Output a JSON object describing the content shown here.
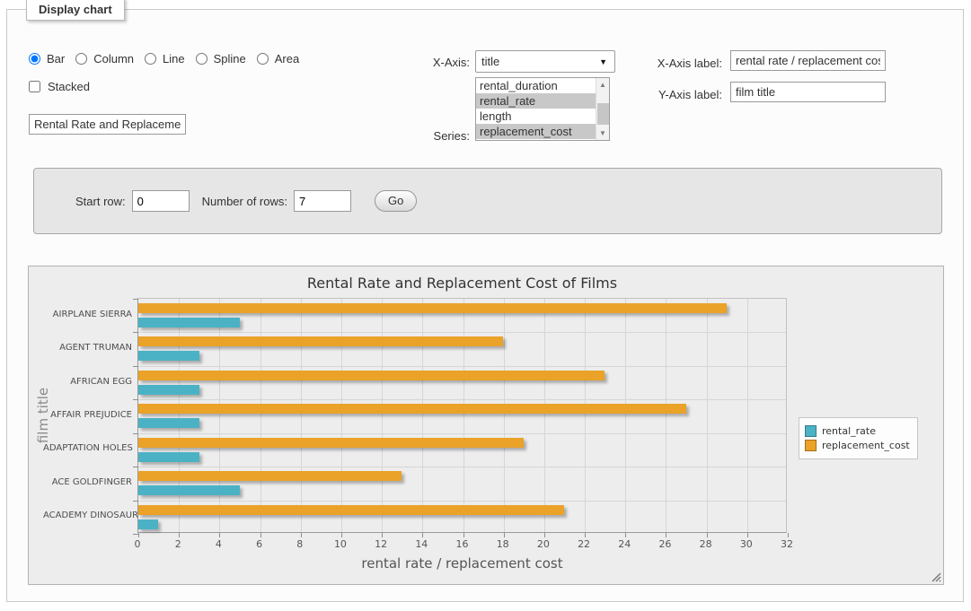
{
  "panel": {
    "legend_title": "Display chart",
    "chart_types": [
      {
        "label": "Bar",
        "selected": true
      },
      {
        "label": "Column",
        "selected": false
      },
      {
        "label": "Line",
        "selected": false
      },
      {
        "label": "Spline",
        "selected": false
      },
      {
        "label": "Area",
        "selected": false
      }
    ],
    "stacked": {
      "label": "Stacked",
      "checked": false
    },
    "chart_title_input": "Rental Rate and Replacement Cost of Films",
    "x_axis": {
      "label": "X-Axis:",
      "selected_value": "title"
    },
    "series_select": {
      "label": "Series:",
      "options": [
        {
          "label": "rental_duration",
          "selected": false
        },
        {
          "label": "rental_rate",
          "selected": true
        },
        {
          "label": "length",
          "selected": false
        },
        {
          "label": "replacement_cost",
          "selected": true
        }
      ]
    },
    "x_axis_label": {
      "label": "X-Axis label:",
      "value": "rental rate / replacement cost"
    },
    "y_axis_label": {
      "label": "Y-Axis label:",
      "value": "film title"
    }
  },
  "rows_panel": {
    "start_row_label": "Start row:",
    "start_row_value": "0",
    "num_rows_label": "Number of rows:",
    "num_rows_value": "7",
    "go_label": "Go"
  },
  "chart_data": {
    "type": "bar",
    "orientation": "horizontal",
    "title": "Rental Rate and Replacement Cost of Films",
    "xlabel": "rental rate / replacement cost",
    "ylabel": "film title",
    "categories": [
      "AIRPLANE SIERRA",
      "AGENT TRUMAN",
      "AFRICAN EGG",
      "AFFAIR PREJUDICE",
      "ADAPTATION HOLES",
      "ACE GOLDFINGER",
      "ACADEMY DINOSAUR"
    ],
    "series": [
      {
        "name": "rental_rate",
        "color": "#4bb2c5",
        "values": [
          4.99,
          2.99,
          2.99,
          2.99,
          2.99,
          4.99,
          0.99
        ]
      },
      {
        "name": "replacement_cost",
        "color": "#eaa228",
        "values": [
          28.99,
          17.99,
          22.99,
          26.99,
          18.99,
          12.99,
          20.99
        ]
      }
    ],
    "xlim": [
      0,
      32
    ],
    "x_tick_step": 2,
    "grid": true,
    "legend_position": "right"
  }
}
